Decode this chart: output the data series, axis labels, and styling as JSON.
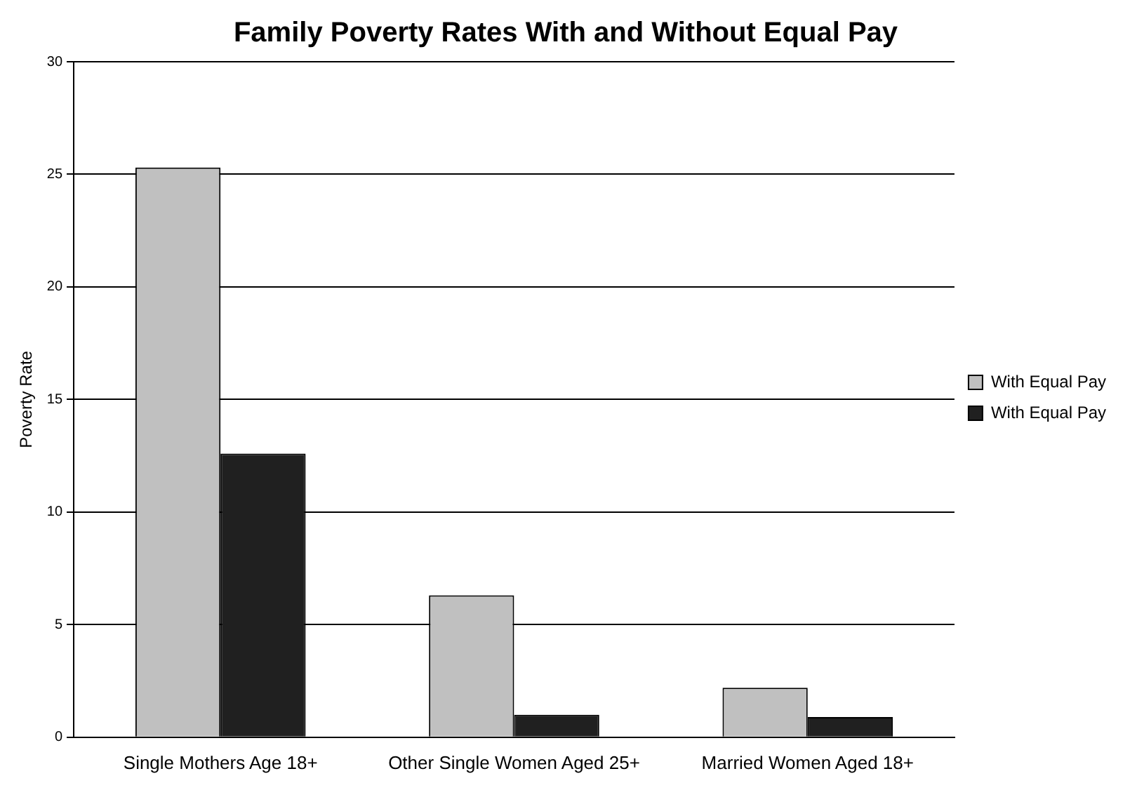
{
  "chart_data": {
    "type": "bar",
    "title": "Family Poverty Rates With and Without Equal Pay",
    "ylabel": "Poverty Rate",
    "categories": [
      "Single Mothers Age 18+",
      "Other Single Women Aged 25+",
      "Married Women Aged 18+"
    ],
    "series": [
      {
        "name": "With Equal Pay",
        "color": "#c0c0c0",
        "values": [
          25.3,
          6.3,
          2.2
        ]
      },
      {
        "name": "With Equal Pay",
        "color": "#202020",
        "values": [
          12.6,
          1.0,
          0.9
        ]
      }
    ],
    "ylim": [
      0,
      30
    ],
    "yticks": [
      0,
      5,
      10,
      15,
      20,
      25,
      30
    ],
    "grid": "y",
    "legend": "right"
  }
}
